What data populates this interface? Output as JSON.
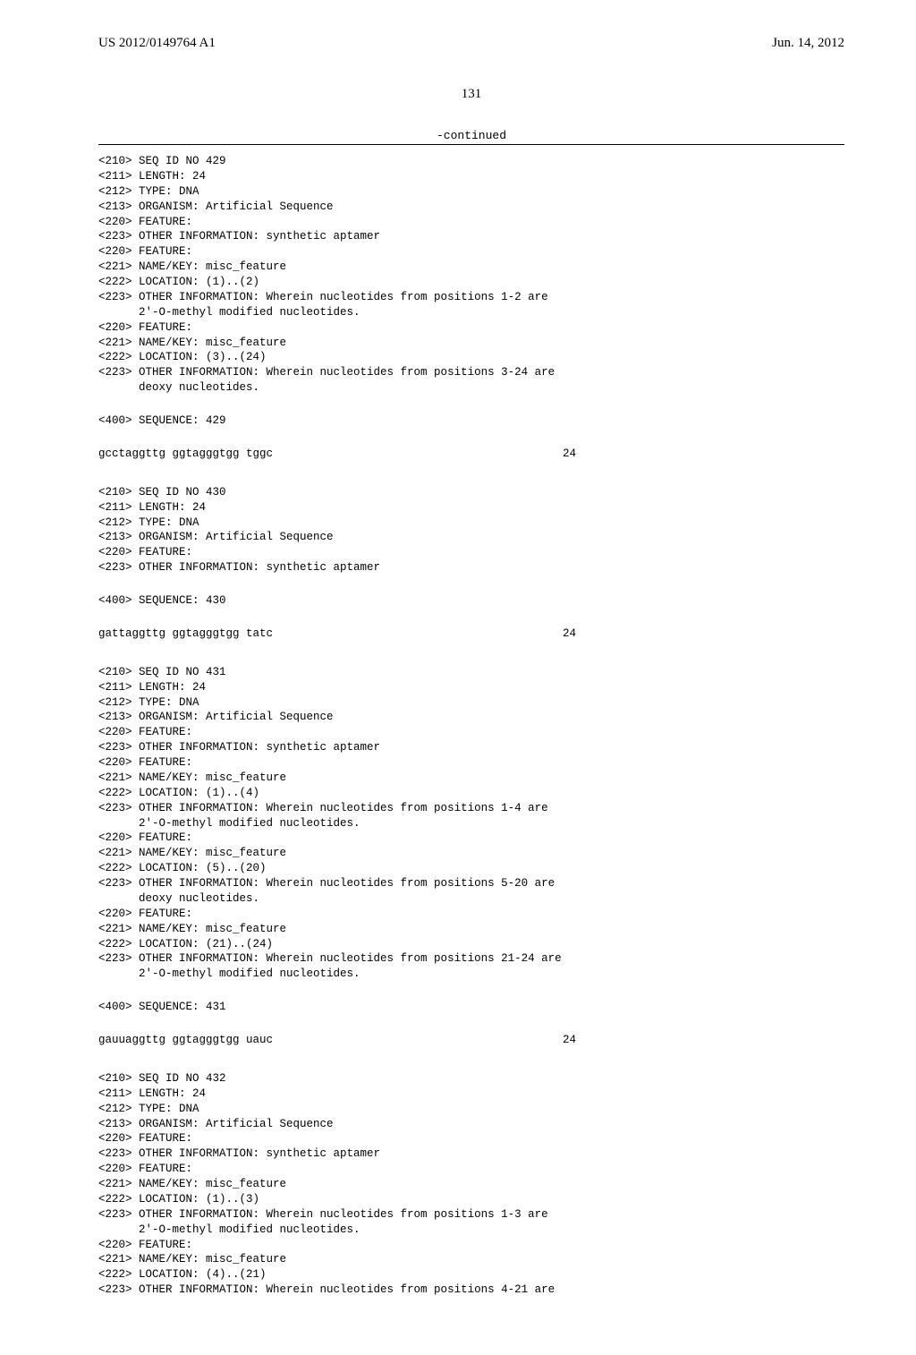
{
  "header": {
    "left": "US 2012/0149764 A1",
    "right": "Jun. 14, 2012"
  },
  "page_number": "131",
  "continued_label": "-continued",
  "entries": [
    {
      "annot": [
        "<210> SEQ ID NO 429",
        "<211> LENGTH: 24",
        "<212> TYPE: DNA",
        "<213> ORGANISM: Artificial Sequence",
        "<220> FEATURE:",
        "<223> OTHER INFORMATION: synthetic aptamer",
        "<220> FEATURE:",
        "<221> NAME/KEY: misc_feature",
        "<222> LOCATION: (1)..(2)",
        "<223> OTHER INFORMATION: Wherein nucleotides from positions 1-2 are",
        "      2'-O-methyl modified nucleotides.",
        "<220> FEATURE:",
        "<221> NAME/KEY: misc_feature",
        "<222> LOCATION: (3)..(24)",
        "<223> OTHER INFORMATION: Wherein nucleotides from positions 3-24 are",
        "      deoxy nucleotides."
      ],
      "seq_header": "<400> SEQUENCE: 429",
      "sequence": "gcctaggttg ggtagggtgg tggc",
      "seq_len": "24"
    },
    {
      "annot": [
        "<210> SEQ ID NO 430",
        "<211> LENGTH: 24",
        "<212> TYPE: DNA",
        "<213> ORGANISM: Artificial Sequence",
        "<220> FEATURE:",
        "<223> OTHER INFORMATION: synthetic aptamer"
      ],
      "seq_header": "<400> SEQUENCE: 430",
      "sequence": "gattaggttg ggtagggtgg tatc",
      "seq_len": "24"
    },
    {
      "annot": [
        "<210> SEQ ID NO 431",
        "<211> LENGTH: 24",
        "<212> TYPE: DNA",
        "<213> ORGANISM: Artificial Sequence",
        "<220> FEATURE:",
        "<223> OTHER INFORMATION: synthetic aptamer",
        "<220> FEATURE:",
        "<221> NAME/KEY: misc_feature",
        "<222> LOCATION: (1)..(4)",
        "<223> OTHER INFORMATION: Wherein nucleotides from positions 1-4 are",
        "      2'-O-methyl modified nucleotides.",
        "<220> FEATURE:",
        "<221> NAME/KEY: misc_feature",
        "<222> LOCATION: (5)..(20)",
        "<223> OTHER INFORMATION: Wherein nucleotides from positions 5-20 are",
        "      deoxy nucleotides.",
        "<220> FEATURE:",
        "<221> NAME/KEY: misc_feature",
        "<222> LOCATION: (21)..(24)",
        "<223> OTHER INFORMATION: Wherein nucleotides from positions 21-24 are",
        "      2'-O-methyl modified nucleotides."
      ],
      "seq_header": "<400> SEQUENCE: 431",
      "sequence": "gauuaggttg ggtagggtgg uauc",
      "seq_len": "24"
    },
    {
      "annot": [
        "<210> SEQ ID NO 432",
        "<211> LENGTH: 24",
        "<212> TYPE: DNA",
        "<213> ORGANISM: Artificial Sequence",
        "<220> FEATURE:",
        "<223> OTHER INFORMATION: synthetic aptamer",
        "<220> FEATURE:",
        "<221> NAME/KEY: misc_feature",
        "<222> LOCATION: (1)..(3)",
        "<223> OTHER INFORMATION: Wherein nucleotides from positions 1-3 are",
        "      2'-O-methyl modified nucleotides.",
        "<220> FEATURE:",
        "<221> NAME/KEY: misc_feature",
        "<222> LOCATION: (4)..(21)",
        "<223> OTHER INFORMATION: Wherein nucleotides from positions 4-21 are"
      ],
      "seq_header": "",
      "sequence": "",
      "seq_len": ""
    }
  ]
}
